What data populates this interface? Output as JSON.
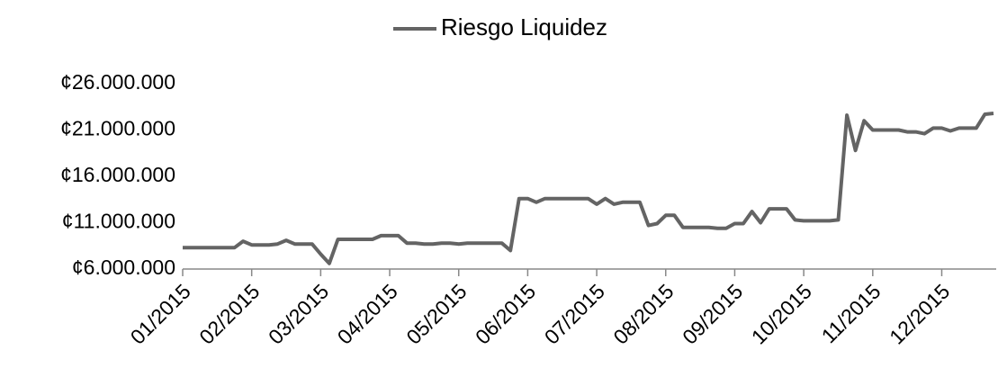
{
  "chart_data": {
    "type": "line",
    "categories": [
      "01/2015",
      null,
      null,
      null,
      null,
      null,
      null,
      null,
      "02/2015",
      null,
      null,
      null,
      null,
      null,
      null,
      null,
      "03/2015",
      null,
      null,
      null,
      null,
      null,
      null,
      null,
      "04/2015",
      null,
      null,
      null,
      null,
      null,
      null,
      null,
      "05/2015",
      null,
      null,
      null,
      null,
      null,
      null,
      null,
      "06/2015",
      null,
      null,
      null,
      null,
      null,
      null,
      null,
      "07/2015",
      null,
      null,
      null,
      null,
      null,
      null,
      null,
      "08/2015",
      null,
      null,
      null,
      null,
      null,
      null,
      null,
      "09/2015",
      null,
      null,
      null,
      null,
      null,
      null,
      null,
      "10/2015",
      null,
      null,
      null,
      null,
      null,
      null,
      null,
      "11/2015",
      null,
      null,
      null,
      null,
      null,
      null,
      null,
      "12/2015",
      null,
      null,
      null,
      null,
      null,
      null
    ],
    "series": [
      {
        "name": "Riesgo Liquidez",
        "color": "#646464",
        "values": [
          8300000,
          8300000,
          8300000,
          8300000,
          8300000,
          8300000,
          8300000,
          9000000,
          8600000,
          8600000,
          8600000,
          8700000,
          9100000,
          8700000,
          8700000,
          8700000,
          7600000,
          6600000,
          9200000,
          9200000,
          9200000,
          9200000,
          9200000,
          9600000,
          9600000,
          9600000,
          8800000,
          8800000,
          8700000,
          8700000,
          8800000,
          8800000,
          8700000,
          8800000,
          8800000,
          8800000,
          8800000,
          8800000,
          8000000,
          13600000,
          13600000,
          13200000,
          13600000,
          13600000,
          13600000,
          13600000,
          13600000,
          13600000,
          13000000,
          13600000,
          13000000,
          13200000,
          13200000,
          13200000,
          10700000,
          10900000,
          11800000,
          11800000,
          10500000,
          10500000,
          10500000,
          10500000,
          10400000,
          10400000,
          10900000,
          10900000,
          12200000,
          11000000,
          12500000,
          12500000,
          12500000,
          11300000,
          11200000,
          11200000,
          11200000,
          11200000,
          11300000,
          22600000,
          18800000,
          22000000,
          21000000,
          21000000,
          21000000,
          21000000,
          20800000,
          20800000,
          20600000,
          21200000,
          21200000,
          20900000,
          21200000,
          21200000,
          21200000,
          22700000,
          22800000
        ]
      }
    ],
    "ylim": [
      6000000,
      26000000
    ],
    "yticks": [
      {
        "value": 6000000,
        "label": "¢6.000.000"
      },
      {
        "value": 11000000,
        "label": "¢11.000.000"
      },
      {
        "value": 16000000,
        "label": "¢16.000.000"
      },
      {
        "value": 21000000,
        "label": "¢21.000.000"
      },
      {
        "value": 26000000,
        "label": "¢26.000.000"
      }
    ],
    "legend": "top"
  }
}
